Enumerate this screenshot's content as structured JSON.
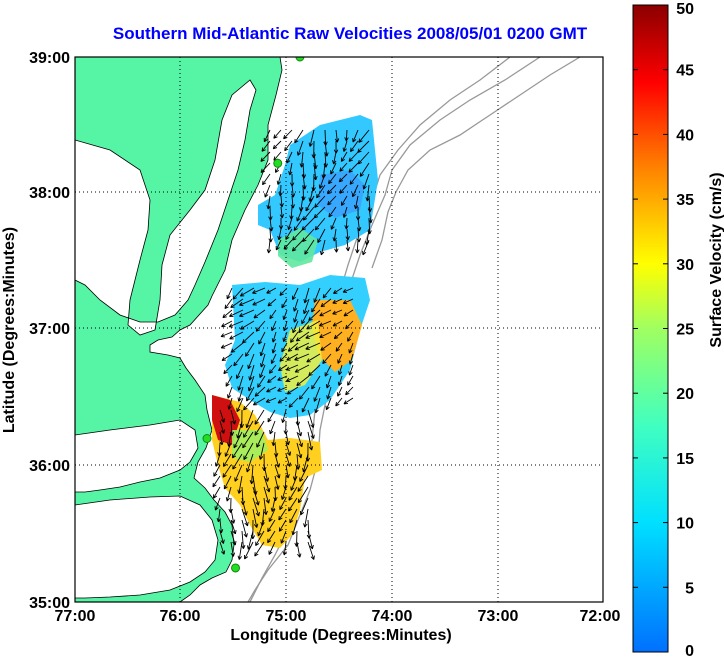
{
  "title": "Southern Mid-Atlantic Raw Velocities 2008/05/01 0200 GMT",
  "axes": {
    "xlabel": "Longitude (Degrees:Minutes)",
    "ylabel": "Latitude (Degrees:Minutes)",
    "xticks": [
      "77:00",
      "76:00",
      "75:00",
      "74:00",
      "73:00",
      "72:00"
    ],
    "yticks": [
      "39:00",
      "38:00",
      "37:00",
      "36:00",
      "35:00"
    ],
    "x_range_deg_west": [
      77,
      72
    ],
    "y_range_deg_north": [
      35,
      39
    ],
    "grid": "dotted"
  },
  "colorbar": {
    "label": "Surface Velocity (cm/s)",
    "min": 0,
    "max": 50,
    "ticks": [
      "50",
      "45",
      "40",
      "35",
      "30",
      "25",
      "20",
      "15",
      "10",
      "5",
      "0"
    ],
    "colormap": "jet"
  },
  "colors": {
    "land": "#55f5a5",
    "water": "#ffffff",
    "bathymetry": "#999999",
    "coastline": "#000000",
    "station": "#22dd22",
    "title": "#0000ff"
  },
  "stations": [
    {
      "lon": -74.87,
      "lat": 39.0
    },
    {
      "lon": -75.08,
      "lat": 38.22
    },
    {
      "lon": -75.75,
      "lat": 36.2
    },
    {
      "lon": -75.48,
      "lat": 35.25
    }
  ]
}
